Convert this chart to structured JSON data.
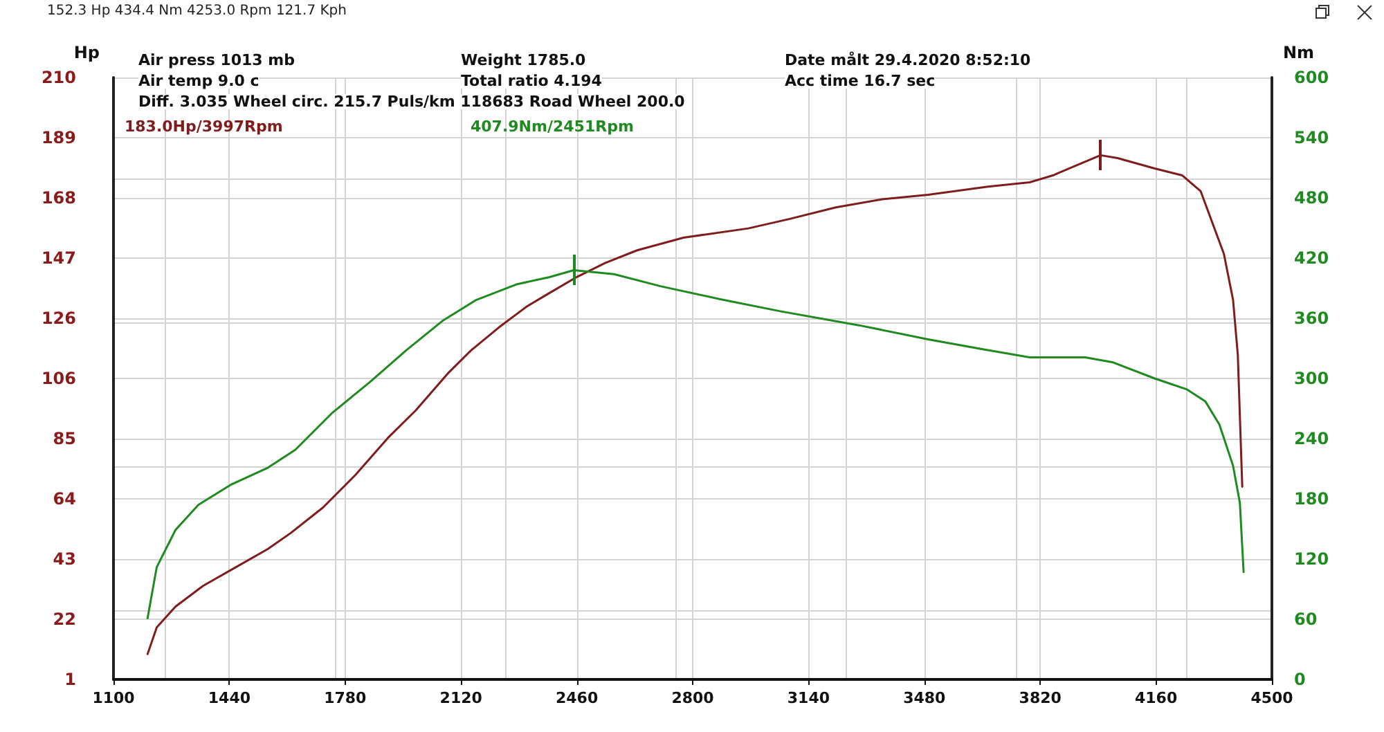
{
  "chart_data": {
    "type": "line",
    "ylabel": "Hp",
    "y2label": "Nm",
    "xlim": [
      1100,
      4500
    ],
    "xticks": [
      1100,
      1440,
      1780,
      2120,
      2460,
      2800,
      3140,
      3480,
      3820,
      4160,
      4500
    ],
    "ylim": [
      1,
      210
    ],
    "yticks": [
      1,
      {
        "value": 21.9,
        "label": "22"
      },
      {
        "value": 42.8,
        "label": "43"
      },
      {
        "value": 63.7,
        "label": "64"
      },
      {
        "value": 84.6,
        "label": "85"
      },
      {
        "value": 105.5,
        "label": "106"
      },
      {
        "value": 126.4,
        "label": "126"
      },
      {
        "value": 147.3,
        "label": "147"
      },
      {
        "value": 168.2,
        "label": "168"
      },
      {
        "value": 189.1,
        "label": "189"
      },
      210
    ],
    "y2lim": [
      0,
      600
    ],
    "y2ticks": [
      0,
      60,
      120,
      180,
      240,
      300,
      360,
      420,
      480,
      540,
      600
    ],
    "grid": true,
    "marker": "none",
    "line_style": "solid",
    "series": [
      {
        "color": "#7f1d1d",
        "x": [
          1200,
          1227,
          1282,
          1363,
          1458,
          1553,
          1621,
          1715,
          1810,
          1905,
          1987,
          2081,
          2149,
          2231,
          2312,
          2380,
          2461,
          2543,
          2637,
          2773,
          2963,
          3085,
          3220,
          3356,
          3491,
          3667,
          3789,
          3857,
          3939,
          3997,
          4047,
          4156,
          4237,
          4291,
          4359,
          4386,
          4400,
          4413
        ],
        "values": [
          9.8,
          19.1,
          26.3,
          33.5,
          39.9,
          46.3,
          51.9,
          60.7,
          72.0,
          84.8,
          94.4,
          107.2,
          115.2,
          123.2,
          130.4,
          135.2,
          140.8,
          145.6,
          150.0,
          154.4,
          157.6,
          160.9,
          164.9,
          167.7,
          169.3,
          172.1,
          173.6,
          176.0,
          180.1,
          183.0,
          182.0,
          178.4,
          176.0,
          170.5,
          148.8,
          132.8,
          113.6,
          67.9
        ]
      },
      {
        "color": "#1f8a1f",
        "axis": "y2",
        "x": [
          1200,
          1227,
          1282,
          1349,
          1444,
          1553,
          1634,
          1743,
          1851,
          1959,
          2068,
          2163,
          2285,
          2380,
          2451,
          2569,
          2705,
          2881,
          3057,
          3288,
          3491,
          3654,
          3789,
          3952,
          4034,
          4156,
          4251,
          4305,
          4346,
          4386,
          4406,
          4417
        ],
        "values": [
          61,
          112,
          149,
          174,
          194,
          211,
          229,
          266,
          296,
          328,
          358,
          378,
          394,
          401,
          407.9,
          404,
          392,
          379,
          367,
          353,
          339,
          329,
          321,
          321,
          316,
          300,
          289,
          277,
          254,
          213,
          176,
          107
        ]
      }
    ],
    "annotations": [
      "152.3 Hp 434.4 Nm 4253.0 Rpm 121.7 Kph",
      "Air press 1013 mb",
      "Weight 1785.0",
      "Date målt 29.4.2020 8:52:10",
      "Air temp 9.0 c",
      "Total ratio 4.194",
      "Acc time 16.7 sec",
      "Diff. 3.035 Wheel circ. 215.7 Puls/km 118683 Road Wheel 200.0",
      "183.0Hp/3997Rpm",
      "407.9Nm/2451Rpm"
    ]
  }
}
